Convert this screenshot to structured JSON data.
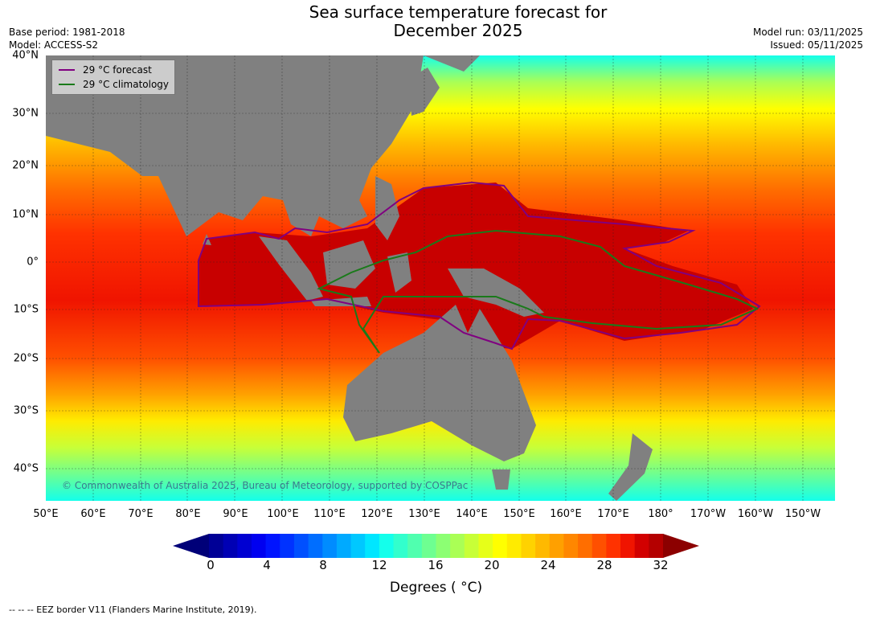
{
  "title_line1": "Sea surface temperature forecast for",
  "title_line2": "December 2025",
  "base_period": "Base period: 1981-2018",
  "model": "Model: ACCESS-S2",
  "model_run": "Model run: 03/11/2025",
  "issued": "Issued: 05/11/2025",
  "legend": {
    "forecast_label": "29 °C  forecast",
    "forecast_color": "#800080",
    "climatology_label": "29 °C  climatology",
    "climatology_color": "#1a7a1a"
  },
  "copyright": "© Commonwealth of Australia 2025, Bureau of Meteorology, supported by COSPPac",
  "lat_labels": [
    "40°N",
    "30°N",
    "20°N",
    "10°N",
    "0°",
    "10°S",
    "20°S",
    "30°S",
    "40°S"
  ],
  "lon_labels": [
    "50°E",
    "60°E",
    "70°E",
    "80°E",
    "90°E",
    "100°E",
    "110°E",
    "120°E",
    "130°E",
    "140°E",
    "150°E",
    "160°E",
    "170°E",
    "180°",
    "170°W",
    "160°W",
    "150°W"
  ],
  "colorbar": {
    "ticks": [
      "0",
      "4",
      "8",
      "12",
      "16",
      "20",
      "24",
      "28",
      "32"
    ],
    "label": "Degrees ( °C)",
    "min": 0,
    "max": 32,
    "step": 1,
    "colors": [
      "#000096",
      "#0000b4",
      "#0000d2",
      "#0000f0",
      "#0014ff",
      "#0032ff",
      "#0050ff",
      "#006eff",
      "#008cff",
      "#00aaff",
      "#00c8ff",
      "#00e6ff",
      "#14ffeb",
      "#32ffcd",
      "#50ffaf",
      "#6eff91",
      "#8cff73",
      "#aaff55",
      "#c8ff37",
      "#e6ff19",
      "#ffff00",
      "#ffeb00",
      "#ffd200",
      "#ffb900",
      "#ffa000",
      "#ff8700",
      "#ff6e00",
      "#ff5000",
      "#ff3200",
      "#f01400",
      "#d20000",
      "#b40000"
    ],
    "under_color": "#000078",
    "over_color": "#8c0000"
  },
  "footnote": "--  --  -- EEZ border V11 (Flanders Marine Institute, 2019).",
  "map_colors": {
    "land": "#808080",
    "warm_pool": "#c80000",
    "warm_core": "#b40000"
  }
}
